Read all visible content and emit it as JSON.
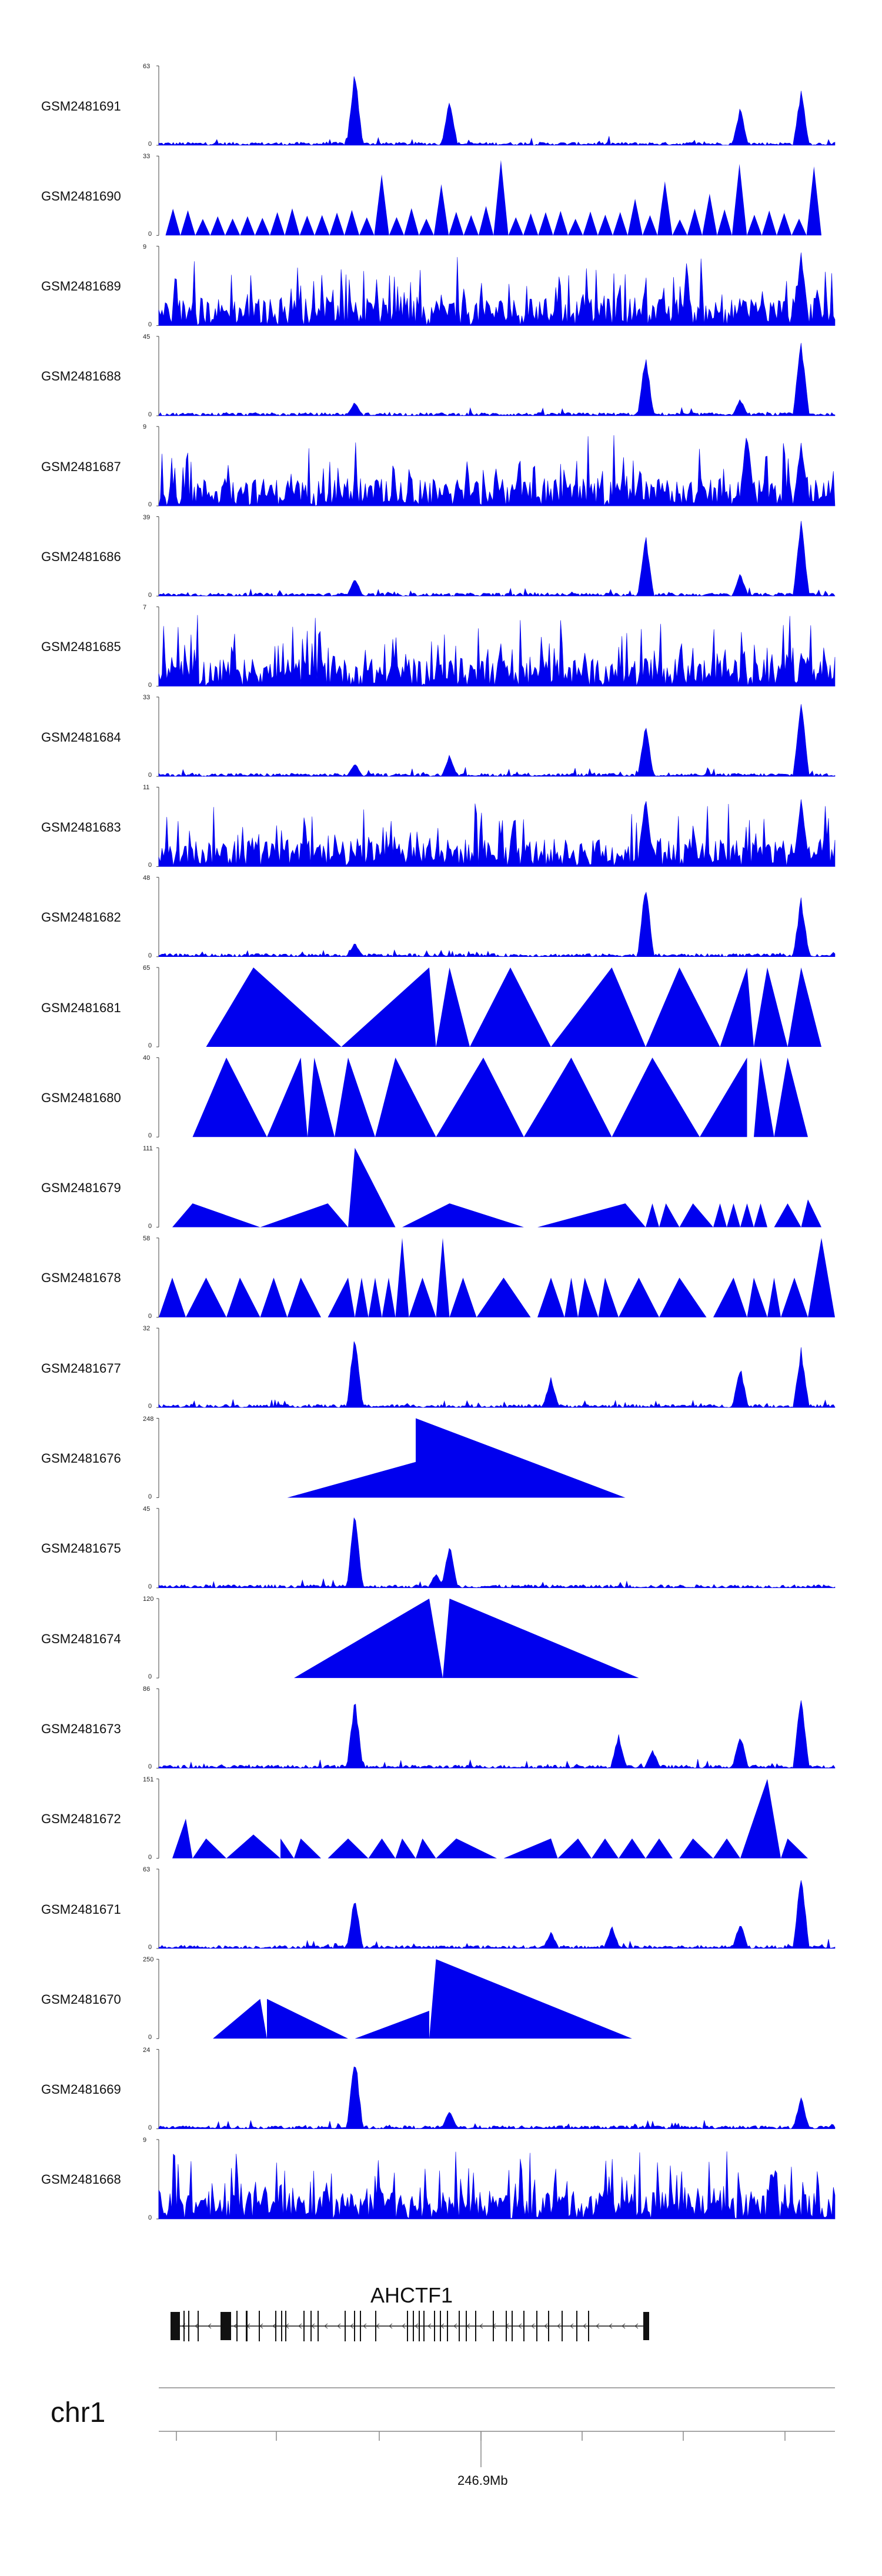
{
  "chart_data": {
    "type": "area",
    "title": "",
    "color": "#0000ee",
    "tracks": [
      {
        "name": "GSM2481691",
        "ymax": "63",
        "ymin": "0",
        "pattern": "sparse",
        "peaks": [
          [
            0.29,
            1.0
          ],
          [
            0.43,
            0.62
          ],
          [
            0.86,
            0.5
          ],
          [
            0.95,
            0.72
          ]
        ]
      },
      {
        "name": "GSM2481690",
        "ymax": "33",
        "ymin": "0",
        "pattern": "triangles",
        "n": 44,
        "peaks": [
          [
            0.5,
            0.95
          ],
          [
            0.86,
            0.9
          ]
        ]
      },
      {
        "name": "GSM2481689",
        "ymax": "9",
        "ymin": "0",
        "pattern": "dense",
        "peaks": [
          [
            0.95,
            1.0
          ]
        ]
      },
      {
        "name": "GSM2481688",
        "ymax": "45",
        "ymin": "0",
        "pattern": "sparse",
        "peaks": [
          [
            0.29,
            0.18
          ],
          [
            0.72,
            0.82
          ],
          [
            0.86,
            0.22
          ],
          [
            0.95,
            1.0
          ]
        ]
      },
      {
        "name": "GSM2481687",
        "ymax": "9",
        "ymin": "0",
        "pattern": "dense",
        "peaks": [
          [
            0.87,
            1.0
          ],
          [
            0.95,
            0.85
          ]
        ]
      },
      {
        "name": "GSM2481686",
        "ymax": "39",
        "ymin": "0",
        "pattern": "sparse",
        "peaks": [
          [
            0.29,
            0.25
          ],
          [
            0.72,
            0.8
          ],
          [
            0.86,
            0.3
          ],
          [
            0.95,
            1.0
          ]
        ]
      },
      {
        "name": "GSM2481685",
        "ymax": "7",
        "ymin": "0",
        "pattern": "dense",
        "peaks": []
      },
      {
        "name": "GSM2481684",
        "ymax": "33",
        "ymin": "0",
        "pattern": "sparse",
        "peaks": [
          [
            0.29,
            0.18
          ],
          [
            0.43,
            0.28
          ],
          [
            0.72,
            0.7
          ],
          [
            0.95,
            1.0
          ]
        ]
      },
      {
        "name": "GSM2481683",
        "ymax": "11",
        "ymin": "0",
        "pattern": "dense",
        "peaks": [
          [
            0.72,
            1.0
          ],
          [
            0.95,
            0.9
          ]
        ]
      },
      {
        "name": "GSM2481682",
        "ymax": "48",
        "ymin": "0",
        "pattern": "sparse",
        "peaks": [
          [
            0.29,
            0.18
          ],
          [
            0.72,
            1.0
          ],
          [
            0.95,
            0.78
          ]
        ]
      },
      {
        "name": "GSM2481681",
        "ymax": "65",
        "ymin": "0",
        "pattern": "bigtri",
        "tris": [
          [
            0.07,
            0.14,
            0.27
          ],
          [
            0.27,
            0.4,
            0.41
          ],
          [
            0.41,
            0.43,
            0.46
          ],
          [
            0.46,
            0.52,
            0.58
          ],
          [
            0.58,
            0.67,
            0.72
          ],
          [
            0.72,
            0.77,
            0.83
          ],
          [
            0.83,
            0.87,
            0.88
          ],
          [
            0.88,
            0.9,
            0.93
          ],
          [
            0.93,
            0.95,
            0.98
          ]
        ]
      },
      {
        "name": "GSM2481680",
        "ymax": "40",
        "ymin": "0",
        "pattern": "bigtri",
        "tris": [
          [
            0.05,
            0.1,
            0.16
          ],
          [
            0.16,
            0.21,
            0.22
          ],
          [
            0.22,
            0.23,
            0.26
          ],
          [
            0.26,
            0.28,
            0.32
          ],
          [
            0.32,
            0.35,
            0.41
          ],
          [
            0.41,
            0.48,
            0.54
          ],
          [
            0.54,
            0.61,
            0.67
          ],
          [
            0.67,
            0.73,
            0.8
          ],
          [
            0.8,
            0.87,
            0.87
          ],
          [
            0.88,
            0.89,
            0.91
          ],
          [
            0.91,
            0.93,
            0.96
          ]
        ]
      },
      {
        "name": "GSM2481679",
        "ymax": "111",
        "ymin": "0",
        "pattern": "mixtri",
        "tris": [
          [
            0.02,
            0.05,
            0.15,
            0.3
          ],
          [
            0.15,
            0.25,
            0.28,
            0.3
          ],
          [
            0.28,
            0.29,
            0.35,
            1.0
          ],
          [
            0.36,
            0.43,
            0.54,
            0.3
          ],
          [
            0.56,
            0.69,
            0.72,
            0.3
          ],
          [
            0.72,
            0.73,
            0.74,
            0.3
          ],
          [
            0.74,
            0.75,
            0.77,
            0.3
          ],
          [
            0.77,
            0.79,
            0.82,
            0.3
          ],
          [
            0.82,
            0.83,
            0.84,
            0.3
          ],
          [
            0.84,
            0.85,
            0.86,
            0.3
          ],
          [
            0.86,
            0.87,
            0.88,
            0.3
          ],
          [
            0.88,
            0.89,
            0.9,
            0.3
          ],
          [
            0.91,
            0.93,
            0.95,
            0.3
          ],
          [
            0.95,
            0.96,
            0.98,
            0.35
          ]
        ]
      },
      {
        "name": "GSM2481678",
        "ymax": "58",
        "ymin": "0",
        "pattern": "mixtri",
        "tris": [
          [
            0.0,
            0.02,
            0.04,
            0.5
          ],
          [
            0.04,
            0.07,
            0.1,
            0.5
          ],
          [
            0.1,
            0.12,
            0.15,
            0.5
          ],
          [
            0.15,
            0.17,
            0.19,
            0.5
          ],
          [
            0.19,
            0.21,
            0.24,
            0.5
          ],
          [
            0.25,
            0.28,
            0.29,
            0.5
          ],
          [
            0.29,
            0.3,
            0.31,
            0.5
          ],
          [
            0.31,
            0.32,
            0.33,
            0.5
          ],
          [
            0.33,
            0.34,
            0.35,
            0.5
          ],
          [
            0.35,
            0.36,
            0.37,
            1.0
          ],
          [
            0.37,
            0.39,
            0.41,
            0.5
          ],
          [
            0.41,
            0.42,
            0.43,
            1.0
          ],
          [
            0.43,
            0.45,
            0.47,
            0.5
          ],
          [
            0.47,
            0.51,
            0.55,
            0.5
          ],
          [
            0.56,
            0.58,
            0.6,
            0.5
          ],
          [
            0.6,
            0.61,
            0.62,
            0.5
          ],
          [
            0.62,
            0.63,
            0.65,
            0.5
          ],
          [
            0.65,
            0.66,
            0.68,
            0.5
          ],
          [
            0.68,
            0.71,
            0.74,
            0.5
          ],
          [
            0.74,
            0.77,
            0.81,
            0.5
          ],
          [
            0.82,
            0.85,
            0.87,
            0.5
          ],
          [
            0.87,
            0.88,
            0.9,
            0.5
          ],
          [
            0.9,
            0.91,
            0.92,
            0.5
          ],
          [
            0.92,
            0.94,
            0.96,
            0.5
          ],
          [
            0.96,
            0.98,
            1.0,
            1.0
          ]
        ]
      },
      {
        "name": "GSM2481677",
        "ymax": "32",
        "ymin": "0",
        "pattern": "sparse",
        "peaks": [
          [
            0.29,
            1.0
          ],
          [
            0.58,
            0.4
          ],
          [
            0.86,
            0.55
          ],
          [
            0.95,
            0.78
          ]
        ]
      },
      {
        "name": "GSM2481676",
        "ymax": "248",
        "ymin": "0",
        "pattern": "mixtri",
        "tris": [
          [
            0.19,
            0.38,
            0.38,
            0.45
          ],
          [
            0.38,
            0.38,
            0.69,
            1.0
          ]
        ]
      },
      {
        "name": "GSM2481675",
        "ymax": "45",
        "ymin": "0",
        "pattern": "sparse",
        "peaks": [
          [
            0.29,
            1.0
          ],
          [
            0.41,
            0.2
          ],
          [
            0.43,
            0.58
          ]
        ]
      },
      {
        "name": "GSM2481674",
        "ymax": "120",
        "ymin": "0",
        "pattern": "mixtri",
        "tris": [
          [
            0.2,
            0.4,
            0.42,
            1.0
          ],
          [
            0.42,
            0.43,
            0.71,
            1.0
          ]
        ]
      },
      {
        "name": "GSM2481673",
        "ymax": "86",
        "ymin": "0",
        "pattern": "sparse",
        "peaks": [
          [
            0.29,
            0.95
          ],
          [
            0.68,
            0.45
          ],
          [
            0.73,
            0.25
          ],
          [
            0.86,
            0.45
          ],
          [
            0.95,
            1.0
          ]
        ]
      },
      {
        "name": "GSM2481672",
        "ymax": "151",
        "ymin": "0",
        "pattern": "mixtri",
        "tris": [
          [
            0.02,
            0.04,
            0.05,
            0.5
          ],
          [
            0.05,
            0.07,
            0.1,
            0.25
          ],
          [
            0.1,
            0.14,
            0.18,
            0.3
          ],
          [
            0.18,
            0.18,
            0.2,
            0.25
          ],
          [
            0.2,
            0.21,
            0.24,
            0.25
          ],
          [
            0.25,
            0.28,
            0.31,
            0.25
          ],
          [
            0.31,
            0.33,
            0.35,
            0.25
          ],
          [
            0.35,
            0.36,
            0.38,
            0.25
          ],
          [
            0.38,
            0.39,
            0.41,
            0.25
          ],
          [
            0.41,
            0.44,
            0.5,
            0.25
          ],
          [
            0.51,
            0.58,
            0.59,
            0.25
          ],
          [
            0.59,
            0.62,
            0.64,
            0.25
          ],
          [
            0.64,
            0.66,
            0.68,
            0.25
          ],
          [
            0.68,
            0.7,
            0.72,
            0.25
          ],
          [
            0.72,
            0.74,
            0.76,
            0.25
          ],
          [
            0.77,
            0.79,
            0.82,
            0.25
          ],
          [
            0.82,
            0.84,
            0.86,
            0.25
          ],
          [
            0.86,
            0.9,
            0.92,
            1.0
          ],
          [
            0.92,
            0.93,
            0.96,
            0.25
          ]
        ]
      },
      {
        "name": "GSM2481671",
        "ymax": "63",
        "ymin": "0",
        "pattern": "sparse",
        "peaks": [
          [
            0.29,
            0.7
          ],
          [
            0.58,
            0.22
          ],
          [
            0.67,
            0.3
          ],
          [
            0.86,
            0.35
          ],
          [
            0.95,
            1.0
          ]
        ]
      },
      {
        "name": "GSM2481670",
        "ymax": "250",
        "ymin": "0",
        "pattern": "mixtri",
        "tris": [
          [
            0.08,
            0.15,
            0.16,
            0.5
          ],
          [
            0.16,
            0.16,
            0.28,
            0.5
          ],
          [
            0.29,
            0.4,
            0.4,
            0.35
          ],
          [
            0.4,
            0.41,
            0.7,
            1.0
          ]
        ]
      },
      {
        "name": "GSM2481669",
        "ymax": "24",
        "ymin": "0",
        "pattern": "sparse",
        "peaks": [
          [
            0.29,
            1.0
          ],
          [
            0.43,
            0.25
          ],
          [
            0.95,
            0.42
          ]
        ]
      },
      {
        "name": "GSM2481668",
        "ymax": "9",
        "ymin": "0",
        "pattern": "dense",
        "peaks": []
      }
    ],
    "gene": {
      "name": "AHCTF1",
      "strand": "-",
      "exons": 38
    },
    "chromosome": "chr1",
    "x_tick_label": "246.9Mb",
    "xlabel": "",
    "ylabel": ""
  }
}
